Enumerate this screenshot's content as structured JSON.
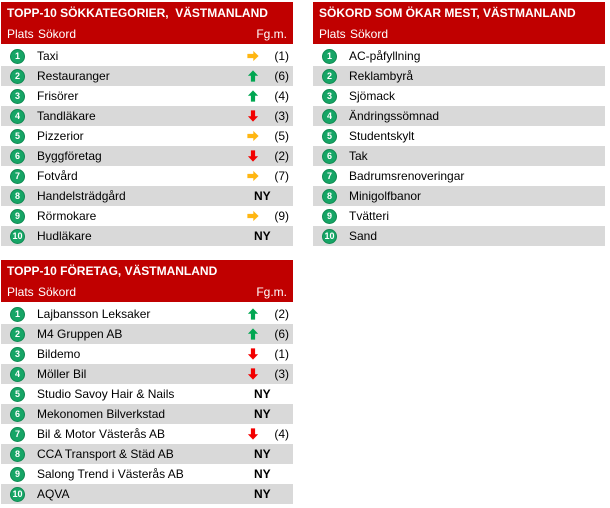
{
  "colors": {
    "header_red": "#C00000",
    "row_alt_gray": "#D9D9D9",
    "row_white": "#FFFFFF",
    "badge_green": "#16A566",
    "arrow_up": "#00A651",
    "arrow_down": "#F20000",
    "arrow_right": "#FFB612",
    "text_black": "#000000",
    "header_text_white": "#FFFFFF"
  },
  "tables": [
    {
      "id": "top-search-categories",
      "title": "TOPP-10 SÖKKATEGORIER,  VÄSTMANLAND",
      "columns": {
        "plats": "Plats",
        "sokord": "Sökord",
        "fgm": "Fg.m."
      },
      "new_label": "NY",
      "rows": [
        {
          "plats": "1",
          "sokord": "Taxi",
          "trend": "same",
          "fgm": "(1)"
        },
        {
          "plats": "2",
          "sokord": "Restauranger",
          "trend": "up",
          "fgm": "(6)"
        },
        {
          "plats": "3",
          "sokord": "Frisörer",
          "trend": "up",
          "fgm": "(4)"
        },
        {
          "plats": "4",
          "sokord": "Tandläkare",
          "trend": "down",
          "fgm": "(3)"
        },
        {
          "plats": "5",
          "sokord": "Pizzerior",
          "trend": "same",
          "fgm": "(5)"
        },
        {
          "plats": "6",
          "sokord": "Byggföretag",
          "trend": "down",
          "fgm": "(2)"
        },
        {
          "plats": "7",
          "sokord": "Fotvård",
          "trend": "same",
          "fgm": "(7)"
        },
        {
          "plats": "8",
          "sokord": "Handelsträdgård",
          "trend": "new",
          "fgm": ""
        },
        {
          "plats": "9",
          "sokord": "Rörmokare",
          "trend": "same",
          "fgm": "(9)"
        },
        {
          "plats": "10",
          "sokord": "Hudläkare",
          "trend": "new",
          "fgm": ""
        }
      ]
    },
    {
      "id": "fastest-rising-keywords",
      "title": "SÖKORD SOM ÖKAR MEST, VÄSTMANLAND",
      "columns": {
        "plats": "Plats",
        "sokord": "Sökord"
      },
      "rows": [
        {
          "plats": "1",
          "sokord": "AC-påfyllning"
        },
        {
          "plats": "2",
          "sokord": "Reklambyrå"
        },
        {
          "plats": "3",
          "sokord": "Sjömack"
        },
        {
          "plats": "4",
          "sokord": "Ändringssömnad"
        },
        {
          "plats": "5",
          "sokord": "Studentskylt"
        },
        {
          "plats": "6",
          "sokord": "Tak"
        },
        {
          "plats": "7",
          "sokord": "Badrumsrenoveringar"
        },
        {
          "plats": "8",
          "sokord": "Minigolfbanor"
        },
        {
          "plats": "9",
          "sokord": "Tvätteri"
        },
        {
          "plats": "10",
          "sokord": "Sand"
        }
      ]
    },
    {
      "id": "top-companies",
      "title": "TOPP-10 FÖRETAG, VÄSTMANLAND",
      "columns": {
        "plats": "Plats",
        "sokord": "Sökord",
        "fgm": "Fg.m."
      },
      "new_label": "NY",
      "rows": [
        {
          "plats": "1",
          "sokord": "Lajbansson Leksaker",
          "trend": "up",
          "fgm": "(2)"
        },
        {
          "plats": "2",
          "sokord": "M4 Gruppen AB",
          "trend": "up",
          "fgm": "(6)"
        },
        {
          "plats": "3",
          "sokord": "Bildemo",
          "trend": "down",
          "fgm": "(1)"
        },
        {
          "plats": "4",
          "sokord": "Möller Bil",
          "trend": "down",
          "fgm": "(3)"
        },
        {
          "plats": "5",
          "sokord": "Studio Savoy Hair & Nails",
          "trend": "new",
          "fgm": ""
        },
        {
          "plats": "6",
          "sokord": "Mekonomen Bilverkstad",
          "trend": "new",
          "fgm": ""
        },
        {
          "plats": "7",
          "sokord": "Bil & Motor Västerås AB",
          "trend": "down",
          "fgm": "(4)"
        },
        {
          "plats": "8",
          "sokord": "CCA Transport & Städ AB",
          "trend": "new",
          "fgm": ""
        },
        {
          "plats": "9",
          "sokord": "Salong Trend i Västerås AB",
          "trend": "new",
          "fgm": ""
        },
        {
          "plats": "10",
          "sokord": "AQVA",
          "trend": "new",
          "fgm": ""
        }
      ]
    }
  ]
}
